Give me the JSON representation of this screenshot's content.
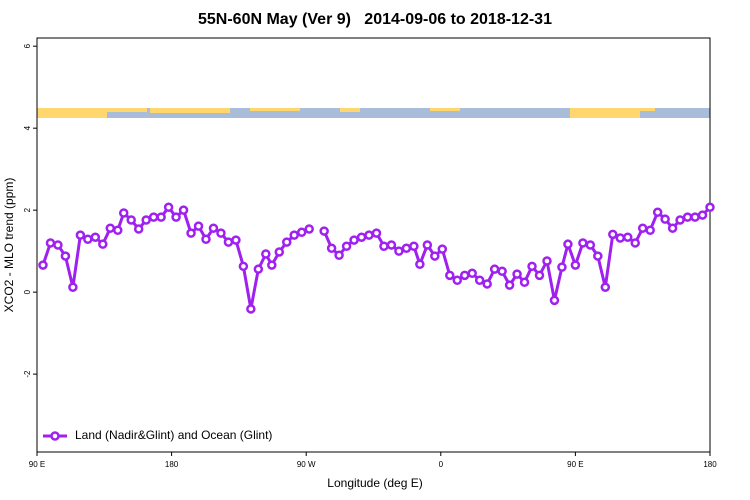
{
  "chart_data": {
    "type": "line",
    "title": "55N-60N May (Ver 9)   2014-09-06 to 2018-12-31",
    "x_label": "Longitude (deg E)",
    "y_label": "XCO2 - MLO trend (ppm)",
    "xlim": [
      90,
      540
    ],
    "xticks": [
      {
        "value": 90,
        "label": "90 E"
      },
      180,
      {
        "value": 270,
        "label": "90 W"
      },
      {
        "value": 360,
        "label": "0"
      },
      {
        "value": 450,
        "label": "90 E"
      },
      {
        "value": 540,
        "label": "180"
      }
    ],
    "ylim": [
      -3.9,
      6.2
    ],
    "yticks": [
      -2,
      0,
      2,
      4,
      6
    ],
    "grid": false,
    "legend": "bottom-left",
    "x": [
      94,
      99,
      104,
      109,
      114,
      119,
      124,
      129,
      134,
      139,
      144,
      148,
      153,
      158,
      163,
      168,
      173,
      178,
      183,
      188,
      193,
      198,
      203,
      208,
      213,
      218,
      223,
      228,
      233,
      238,
      243,
      247,
      252,
      257,
      262,
      267,
      272,
      277,
      282,
      287,
      292,
      297,
      302,
      307,
      312,
      317,
      322,
      327,
      332,
      337,
      342,
      346,
      351,
      356,
      361,
      366,
      371,
      376,
      381,
      386,
      391,
      396,
      401,
      406,
      411,
      416,
      421,
      426,
      431,
      436,
      441,
      445,
      450,
      455,
      460,
      465,
      470,
      475,
      480,
      485,
      490,
      495,
      500,
      505,
      510,
      515,
      520,
      525,
      530,
      535,
      540
    ],
    "series": [
      {
        "name": "Land (Nadir&Glint) and Ocean (Glint)",
        "color": "#a020f0",
        "values": [
          0.66,
          1.2,
          1.15,
          0.88,
          0.12,
          1.39,
          1.29,
          1.34,
          1.17,
          1.56,
          1.51,
          1.93,
          1.76,
          1.54,
          1.76,
          1.83,
          1.83,
          2.07,
          1.83,
          2.0,
          1.44,
          1.61,
          1.29,
          1.56,
          1.44,
          1.22,
          1.27,
          0.63,
          -0.41,
          0.56,
          0.93,
          0.66,
          0.98,
          1.22,
          1.39,
          1.46,
          1.54,
          null,
          1.49,
          1.07,
          0.9,
          1.12,
          1.27,
          1.34,
          1.39,
          1.44,
          1.12,
          1.15,
          1.0,
          1.07,
          1.12,
          0.68,
          1.15,
          0.88,
          1.05,
          0.41,
          0.29,
          0.41,
          0.46,
          0.29,
          0.2,
          0.56,
          0.51,
          0.17,
          0.44,
          0.24,
          0.63,
          0.41,
          0.76,
          -0.2,
          0.61,
          1.17,
          0.66,
          1.2,
          1.15,
          0.88,
          0.12,
          1.41,
          1.32,
          1.34,
          1.2,
          1.56,
          1.51,
          1.95,
          1.78,
          1.56,
          1.76,
          1.83,
          1.83,
          1.88,
          2.07
        ]
      }
    ]
  }
}
